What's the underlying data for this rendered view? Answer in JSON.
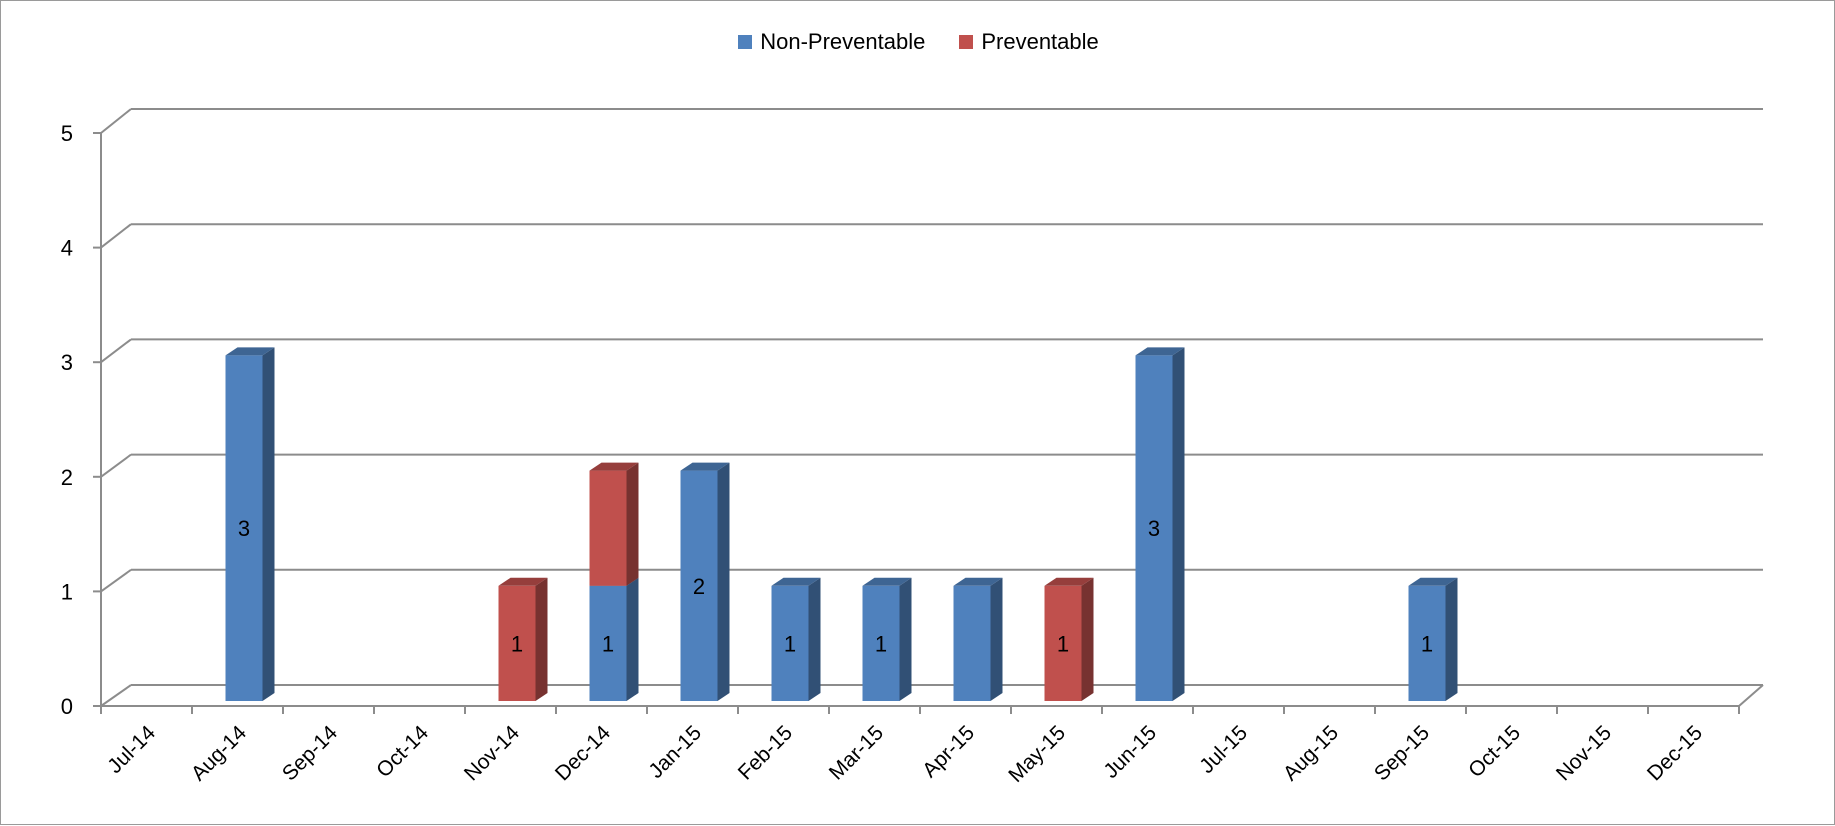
{
  "chart_data": {
    "type": "bar",
    "stacked": true,
    "style": "3d-column",
    "categories": [
      "Jul-14",
      "Aug-14",
      "Sep-14",
      "Oct-14",
      "Nov-14",
      "Dec-14",
      "Jan-15",
      "Feb-15",
      "Mar-15",
      "Apr-15",
      "May-15",
      "Jun-15",
      "Jul-15",
      "Aug-15",
      "Sep-15",
      "Oct-15",
      "Nov-15",
      "Dec-15"
    ],
    "series": [
      {
        "name": "Non-Preventable",
        "color": "#4f81bd",
        "values": [
          0,
          3,
          0,
          0,
          0,
          1,
          2,
          1,
          1,
          1,
          0,
          3,
          0,
          0,
          1,
          0,
          0,
          0
        ]
      },
      {
        "name": "Preventable",
        "color": "#c0504d",
        "values": [
          0,
          0,
          0,
          0,
          1,
          1,
          0,
          0,
          0,
          0,
          1,
          0,
          0,
          0,
          0,
          0,
          0,
          0
        ]
      }
    ],
    "data_labels": [
      {
        "category": "Aug-14",
        "series": "Non-Preventable",
        "text": "3"
      },
      {
        "category": "Nov-14",
        "series": "Preventable",
        "text": "1"
      },
      {
        "category": "Dec-14",
        "series": "Non-Preventable",
        "text": "1"
      },
      {
        "category": "Jan-15",
        "series": "Non-Preventable",
        "text": "2"
      },
      {
        "category": "Feb-15",
        "series": "Non-Preventable",
        "text": "1"
      },
      {
        "category": "Mar-15",
        "series": "Non-Preventable",
        "text": "1"
      },
      {
        "category": "May-15",
        "series": "Preventable",
        "text": "1"
      },
      {
        "category": "Jun-15",
        "series": "Non-Preventable",
        "text": "3"
      },
      {
        "category": "Sep-15",
        "series": "Non-Preventable",
        "text": "1"
      }
    ],
    "y_ticks": [
      "0",
      "1",
      "2",
      "3",
      "4",
      "5"
    ],
    "ylim": [
      0,
      5
    ],
    "grid": true,
    "legend_position": "top-center",
    "title": "",
    "xlabel": "",
    "ylabel": ""
  }
}
